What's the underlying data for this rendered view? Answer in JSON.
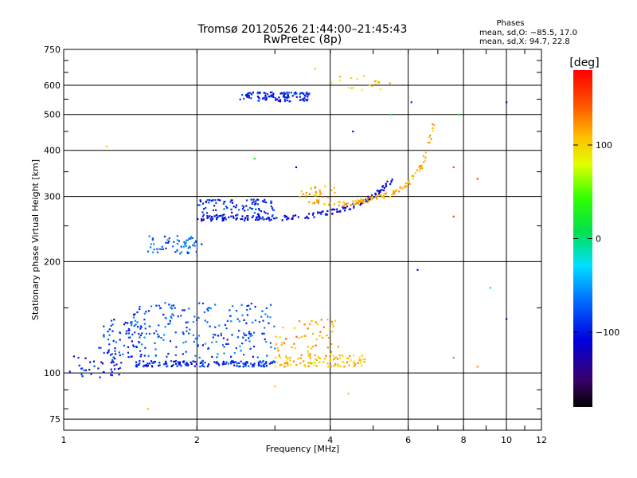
{
  "chart_data": {
    "type": "scatter",
    "title": "Tromsø 20120526 21:44:00–21:45:43",
    "subtitle": "RwPretec (8p)",
    "phase_info": {
      "heading": "Phases",
      "line_o": "mean, sd,O: −85.5, 17.0",
      "line_x": "mean, sd,X:  94.7, 22.8"
    },
    "xlabel": "Frequency [MHz]",
    "ylabel": "Stationary phase Virtual Height [km]",
    "x_scale": "log",
    "y_scale": "log",
    "xlim": [
      1,
      12
    ],
    "ylim": [
      70,
      750
    ],
    "x_ticks": [
      {
        "value": 1,
        "label": "1"
      },
      {
        "value": 2,
        "label": "2"
      },
      {
        "value": 4,
        "label": "4"
      },
      {
        "value": 6,
        "label": "6"
      },
      {
        "value": 8,
        "label": "8"
      },
      {
        "value": 10,
        "label": "10"
      },
      {
        "value": 12,
        "label": "12"
      }
    ],
    "y_ticks": [
      {
        "value": 75,
        "label": "75"
      },
      {
        "value": 100,
        "label": "100"
      },
      {
        "value": 200,
        "label": "200"
      },
      {
        "value": 300,
        "label": "300"
      },
      {
        "value": 400,
        "label": "400"
      },
      {
        "value": 500,
        "label": "500"
      },
      {
        "value": 600,
        "label": "600"
      },
      {
        "value": 750,
        "label": "750"
      }
    ],
    "grid": true,
    "colorbar": {
      "label": "[deg]",
      "range": [
        -180,
        180
      ],
      "ticks": [
        {
          "value": 100,
          "label": "100"
        },
        {
          "value": 0,
          "label": "0"
        },
        {
          "value": -100,
          "label": "−100"
        }
      ]
    },
    "clusters": [
      {
        "f": [
          1.03,
          1.35
        ],
        "h": [
          96,
          112
        ],
        "phase": -105,
        "count": 40
      },
      {
        "f": [
          1.2,
          1.5
        ],
        "h": [
          110,
          140
        ],
        "phase": -95,
        "count": 60
      },
      {
        "f": [
          1.45,
          3.0
        ],
        "h": [
          104,
          108
        ],
        "phase": -95,
        "count": 160
      },
      {
        "f": [
          1.4,
          3.0
        ],
        "h": [
          110,
          155
        ],
        "phase": -80,
        "count": 220
      },
      {
        "f": [
          3.0,
          4.8
        ],
        "h": [
          104,
          112
        ],
        "phase": 110,
        "count": 110
      },
      {
        "f": [
          3.0,
          4.2
        ],
        "h": [
          112,
          140
        ],
        "phase": 120,
        "count": 55
      },
      {
        "f": [
          1.55,
          2.05
        ],
        "h": [
          210,
          235
        ],
        "phase": -75,
        "count": 60
      },
      {
        "f": [
          2.0,
          3.0
        ],
        "h": [
          258,
          295
        ],
        "phase": -100,
        "count": 120
      },
      {
        "f": [
          2.5,
          3.6
        ],
        "h": [
          542,
          575
        ],
        "phase": -100,
        "count": 110
      },
      {
        "f": [
          3.4,
          4.2
        ],
        "h": [
          285,
          320
        ],
        "phase": 115,
        "count": 40
      },
      {
        "f": [
          4.0,
          5.5
        ],
        "h": [
          580,
          640
        ],
        "phase": 100,
        "count": 20
      }
    ],
    "curves": [
      {
        "f": [
          2.0,
          2.5,
          3.0,
          3.5,
          4.0,
          4.5,
          5.0,
          5.5
        ],
        "h": [
          262,
          262,
          262,
          265,
          272,
          282,
          300,
          330
        ],
        "phase": -110,
        "count": 150
      },
      {
        "f": [
          4.2,
          4.6,
          5.0,
          5.5,
          6.0,
          6.5,
          6.9
        ],
        "h": [
          285,
          290,
          296,
          305,
          325,
          370,
          480
        ],
        "phase": 115,
        "count": 110
      }
    ],
    "scattered_points": [
      {
        "f": 1.25,
        "h": 410,
        "phase": 110
      },
      {
        "f": 1.55,
        "h": 80,
        "phase": 110
      },
      {
        "f": 2.7,
        "h": 380,
        "phase": 20
      },
      {
        "f": 3.35,
        "h": 360,
        "phase": -120
      },
      {
        "f": 3.7,
        "h": 665,
        "phase": 110
      },
      {
        "f": 4.5,
        "h": 450,
        "phase": -120
      },
      {
        "f": 5.5,
        "h": 500,
        "phase": 20
      },
      {
        "f": 6.1,
        "h": 540,
        "phase": -100
      },
      {
        "f": 6.3,
        "h": 190,
        "phase": -120
      },
      {
        "f": 7.6,
        "h": 360,
        "phase": 150
      },
      {
        "f": 7.6,
        "h": 265,
        "phase": 150
      },
      {
        "f": 7.6,
        "h": 110,
        "phase": 130
      },
      {
        "f": 7.8,
        "h": 500,
        "phase": 20
      },
      {
        "f": 8.6,
        "h": 335,
        "phase": 150
      },
      {
        "f": 8.6,
        "h": 104,
        "phase": 130
      },
      {
        "f": 9.2,
        "h": 170,
        "phase": -20
      },
      {
        "f": 10.0,
        "h": 140,
        "phase": -120
      },
      {
        "f": 10.0,
        "h": 540,
        "phase": -120
      },
      {
        "f": 3.0,
        "h": 92,
        "phase": 110
      },
      {
        "f": 4.4,
        "h": 88,
        "phase": 110
      }
    ]
  }
}
